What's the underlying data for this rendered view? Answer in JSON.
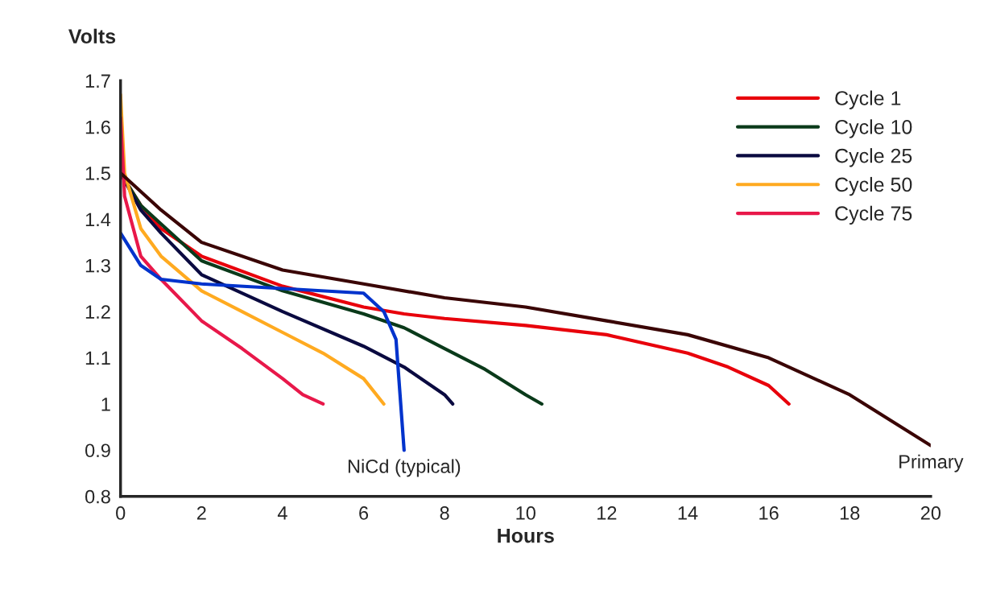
{
  "chart_data": {
    "type": "line",
    "xlabel": "Hours",
    "ylabel": "Volts",
    "xlim": [
      0,
      20
    ],
    "ylim": [
      0.8,
      1.7
    ],
    "xticks": [
      0,
      2,
      4,
      6,
      8,
      10,
      12,
      14,
      16,
      18,
      20
    ],
    "yticks": [
      0.8,
      0.9,
      1,
      1.1,
      1.2,
      1.3,
      1.4,
      1.5,
      1.6,
      1.7
    ],
    "grid": false,
    "legend": "top right",
    "line_style": "solid",
    "marker": "none",
    "series": [
      {
        "name": "Cycle 1",
        "color": "#e8000b",
        "x": [
          0,
          0.5,
          1,
          2,
          4,
          6,
          7,
          8,
          10,
          12,
          14,
          15,
          16,
          16.5
        ],
        "values": [
          1.5,
          1.43,
          1.38,
          1.32,
          1.255,
          1.21,
          1.195,
          1.185,
          1.17,
          1.15,
          1.11,
          1.08,
          1.04,
          1.0
        ]
      },
      {
        "name": "Cycle 10",
        "color": "#0a3a1a",
        "x": [
          0,
          0.5,
          1,
          2,
          4,
          6,
          7,
          8,
          9,
          10,
          10.4
        ],
        "values": [
          1.5,
          1.43,
          1.39,
          1.31,
          1.245,
          1.195,
          1.165,
          1.12,
          1.075,
          1.02,
          1.0
        ]
      },
      {
        "name": "Cycle 25",
        "color": "#0a0a40",
        "x": [
          0,
          0.5,
          1,
          2,
          4,
          6,
          7,
          8,
          8.2
        ],
        "values": [
          1.5,
          1.42,
          1.37,
          1.28,
          1.2,
          1.125,
          1.08,
          1.02,
          1.0
        ]
      },
      {
        "name": "Cycle 50",
        "color": "#ffaa20",
        "x": [
          0,
          0.1,
          0.5,
          1,
          2,
          3,
          4,
          5,
          6,
          6.5
        ],
        "values": [
          1.67,
          1.5,
          1.38,
          1.32,
          1.245,
          1.2,
          1.155,
          1.11,
          1.055,
          1.0
        ]
      },
      {
        "name": "Cycle 75",
        "color": "#e8184a",
        "x": [
          0,
          0.1,
          0.5,
          1,
          2,
          3,
          4,
          4.5,
          5
        ],
        "values": [
          1.62,
          1.45,
          1.32,
          1.27,
          1.18,
          1.12,
          1.055,
          1.02,
          1.0
        ]
      },
      {
        "color": "#0033cc",
        "x": [
          0,
          0.5,
          1,
          2,
          4,
          6,
          6.5,
          6.8,
          7
        ],
        "values": [
          1.37,
          1.3,
          1.27,
          1.26,
          1.25,
          1.24,
          1.2,
          1.14,
          0.9
        ]
      },
      {
        "color": "#3a0505",
        "x": [
          0,
          0.5,
          1,
          2,
          4,
          6,
          8,
          10,
          12,
          14,
          16,
          18,
          20
        ],
        "values": [
          1.5,
          1.46,
          1.42,
          1.35,
          1.29,
          1.26,
          1.23,
          1.21,
          1.18,
          1.15,
          1.1,
          1.02,
          0.91
        ]
      }
    ],
    "annotations": [
      {
        "text": "NiCd (typical)",
        "x": 7,
        "y": 0.9
      },
      {
        "text": "Primary",
        "x": 20,
        "y": 0.91
      }
    ]
  }
}
